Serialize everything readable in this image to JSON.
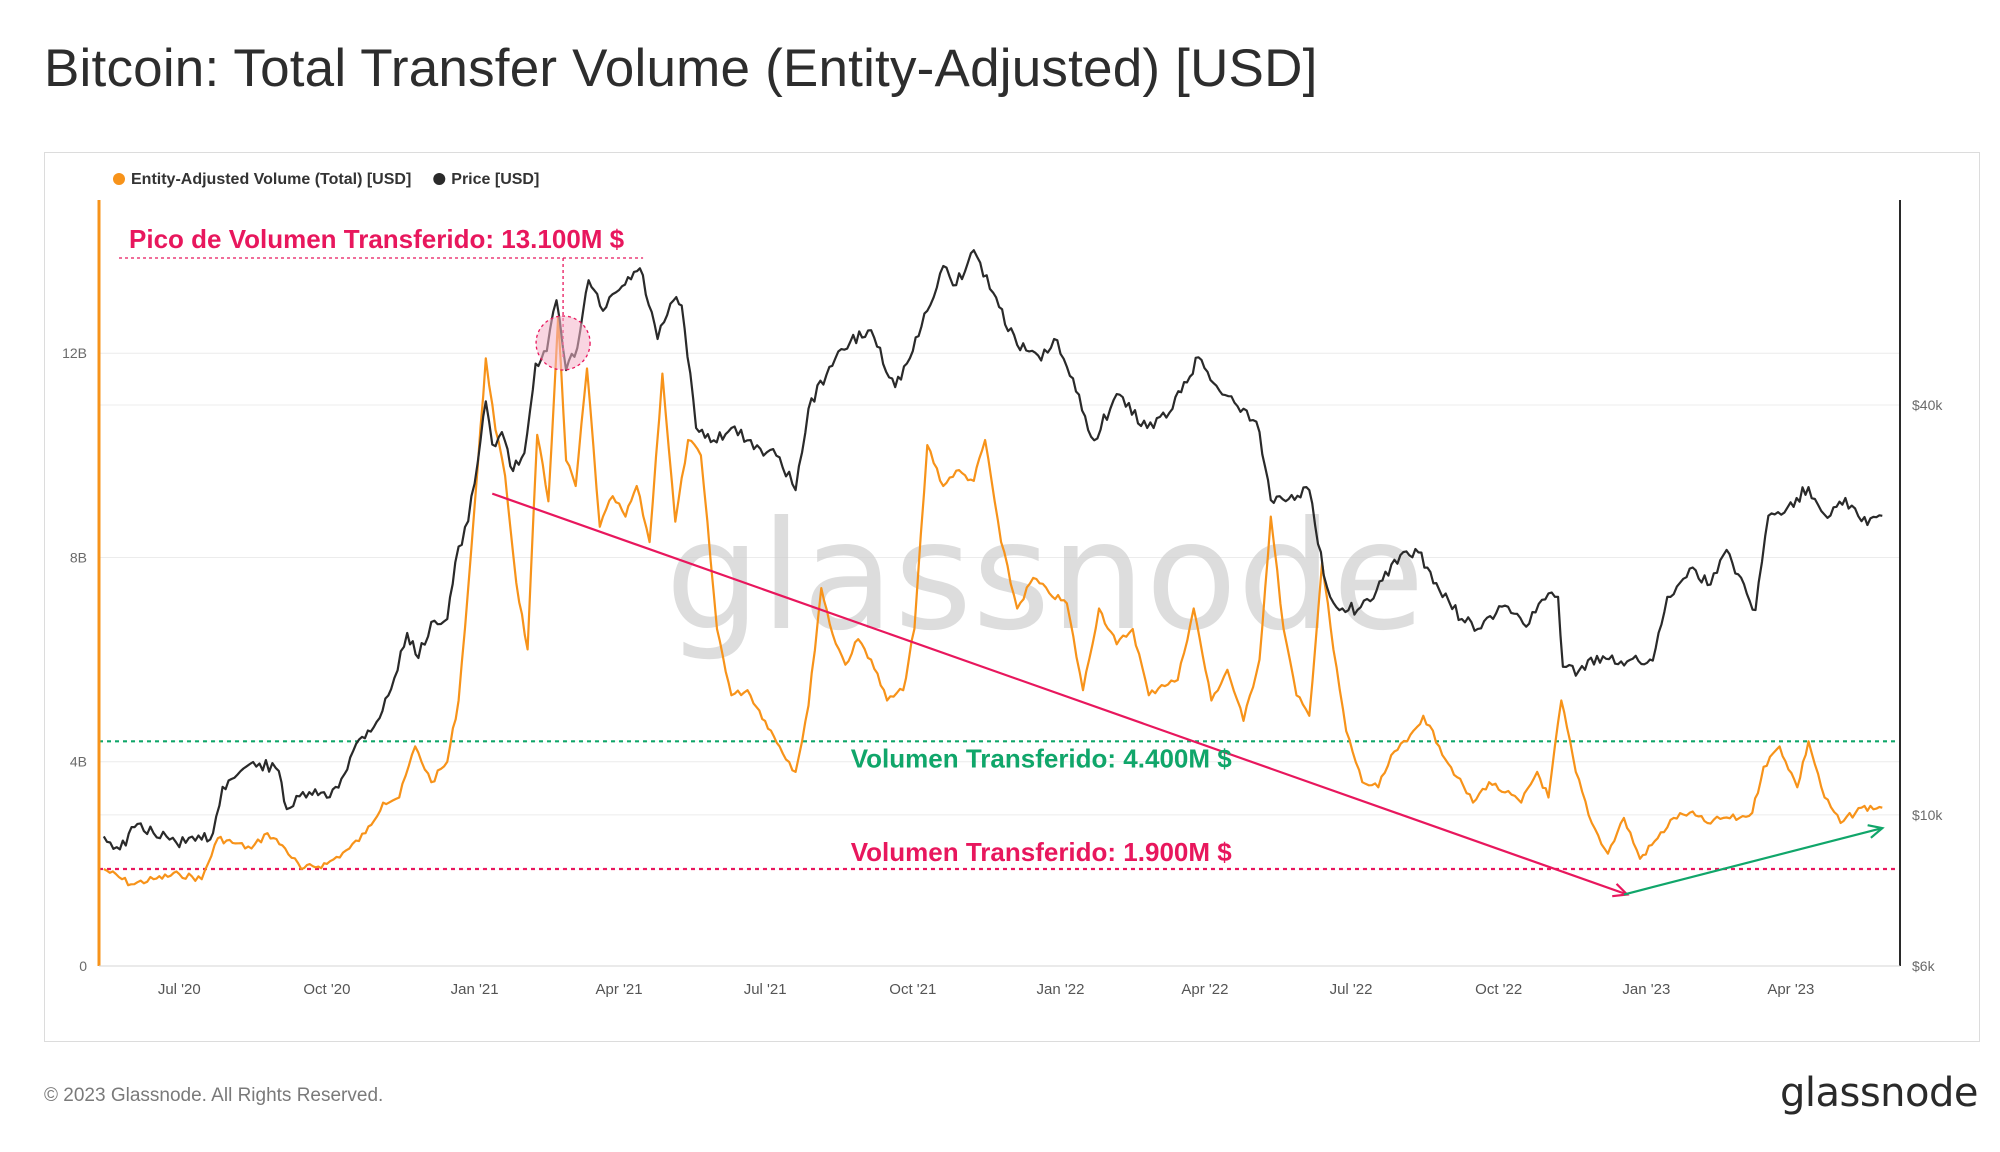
{
  "page": {
    "title": "Bitcoin: Total Transfer Volume (Entity-Adjusted) [USD]",
    "copyright": "© 2023 Glassnode. All Rights Reserved.",
    "logo": "glassnode",
    "watermark": "glassnode"
  },
  "colors": {
    "volume": "#f7931a",
    "price": "#2a2a2a",
    "peak_annotation": "#e8175d",
    "support_green": "#10a66a",
    "support_red": "#e8175d",
    "grid": "#ececec"
  },
  "chart_data": {
    "type": "line",
    "legend": [
      {
        "label": "Entity-Adjusted Volume (Total) [USD]",
        "color": "#f7931a"
      },
      {
        "label": "Price [USD]",
        "color": "#2a2a2a"
      }
    ],
    "legend_position": "top-left",
    "x_ticks": [
      "Jul '20",
      "Oct '20",
      "Jan '21",
      "Apr '21",
      "Jul '21",
      "Oct '21",
      "Jan '22",
      "Apr '22",
      "Jul '22",
      "Oct '22",
      "Jan '23",
      "Apr '23"
    ],
    "x_tick_dates": [
      "2020-07-01",
      "2020-10-01",
      "2021-01-01",
      "2021-04-01",
      "2021-07-01",
      "2021-10-01",
      "2022-01-01",
      "2022-04-01",
      "2022-07-01",
      "2022-10-01",
      "2023-01-01",
      "2023-04-01"
    ],
    "x_range": [
      "2020-05-12",
      "2023-06-08"
    ],
    "y_left": {
      "ticks": [
        "0",
        "4B",
        "8B",
        "12B"
      ],
      "tick_values": [
        0,
        4000000000,
        8000000000,
        12000000000
      ],
      "range": [
        0,
        15000000000
      ],
      "scale": "linear"
    },
    "y_right": {
      "ticks": [
        "$6k",
        "$10k",
        "$40k"
      ],
      "tick_values": [
        6000,
        10000,
        40000
      ],
      "range": [
        6000,
        80000
      ],
      "scale": "log"
    },
    "grid": true,
    "series": [
      {
        "name": "Entity-Adjusted Volume (Total) [USD]",
        "axis": "left",
        "points": [
          [
            "2020-05-15",
            1900000000.0
          ],
          [
            "2020-06-01",
            1600000000.0
          ],
          [
            "2020-06-15",
            1700000000.0
          ],
          [
            "2020-07-01",
            1800000000.0
          ],
          [
            "2020-07-15",
            1700000000.0
          ],
          [
            "2020-07-25",
            2500000000.0
          ],
          [
            "2020-08-05",
            2400000000.0
          ],
          [
            "2020-08-15",
            2300000000.0
          ],
          [
            "2020-08-25",
            2600000000.0
          ],
          [
            "2020-09-05",
            2300000000.0
          ],
          [
            "2020-09-15",
            1900000000.0
          ],
          [
            "2020-10-01",
            2000000000.0
          ],
          [
            "2020-10-15",
            2300000000.0
          ],
          [
            "2020-10-25",
            2600000000.0
          ],
          [
            "2020-11-05",
            3200000000.0
          ],
          [
            "2020-11-15",
            3300000000.0
          ],
          [
            "2020-11-25",
            4300000000.0
          ],
          [
            "2020-12-05",
            3600000000.0
          ],
          [
            "2020-12-15",
            4000000000.0
          ],
          [
            "2020-12-22",
            5200000000.0
          ],
          [
            "2020-12-28",
            7400000000.0
          ],
          [
            "2021-01-03",
            9800000000.0
          ],
          [
            "2021-01-08",
            11900000000.0
          ],
          [
            "2021-01-14",
            10500000000.0
          ],
          [
            "2021-01-20",
            9600000000.0
          ],
          [
            "2021-01-27",
            7500000000.0
          ],
          [
            "2021-02-03",
            6200000000.0
          ],
          [
            "2021-02-09",
            10400000000.0
          ],
          [
            "2021-02-16",
            9100000000.0
          ],
          [
            "2021-02-22",
            12700000000.0
          ],
          [
            "2021-02-27",
            9900000000.0
          ],
          [
            "2021-03-05",
            9400000000.0
          ],
          [
            "2021-03-12",
            11700000000.0
          ],
          [
            "2021-03-20",
            8600000000.0
          ],
          [
            "2021-03-28",
            9200000000.0
          ],
          [
            "2021-04-05",
            8800000000.0
          ],
          [
            "2021-04-12",
            9400000000.0
          ],
          [
            "2021-04-20",
            8300000000.0
          ],
          [
            "2021-04-28",
            11600000000.0
          ],
          [
            "2021-05-06",
            8700000000.0
          ],
          [
            "2021-05-14",
            10300000000.0
          ],
          [
            "2021-05-22",
            10000000000.0
          ],
          [
            "2021-06-01",
            6600000000.0
          ],
          [
            "2021-06-10",
            5300000000.0
          ],
          [
            "2021-06-20",
            5400000000.0
          ],
          [
            "2021-07-01",
            4800000000.0
          ],
          [
            "2021-07-10",
            4300000000.0
          ],
          [
            "2021-07-20",
            3800000000.0
          ],
          [
            "2021-07-28",
            5100000000.0
          ],
          [
            "2021-08-05",
            7400000000.0
          ],
          [
            "2021-08-12",
            6500000000.0
          ],
          [
            "2021-08-20",
            5900000000.0
          ],
          [
            "2021-08-28",
            6400000000.0
          ],
          [
            "2021-09-05",
            6000000000.0
          ],
          [
            "2021-09-15",
            5200000000.0
          ],
          [
            "2021-09-25",
            5400000000.0
          ],
          [
            "2021-10-02",
            6600000000.0
          ],
          [
            "2021-10-10",
            10200000000.0
          ],
          [
            "2021-10-20",
            9400000000.0
          ],
          [
            "2021-10-28",
            9700000000.0
          ],
          [
            "2021-11-08",
            9500000000.0
          ],
          [
            "2021-11-15",
            10300000000.0
          ],
          [
            "2021-11-25",
            8300000000.0
          ],
          [
            "2021-12-05",
            7000000000.0
          ],
          [
            "2021-12-15",
            7600000000.0
          ],
          [
            "2021-12-25",
            7300000000.0
          ],
          [
            "2022-01-05",
            7100000000.0
          ],
          [
            "2022-01-15",
            5400000000.0
          ],
          [
            "2022-01-25",
            7000000000.0
          ],
          [
            "2022-02-05",
            6300000000.0
          ],
          [
            "2022-02-15",
            6600000000.0
          ],
          [
            "2022-02-25",
            5300000000.0
          ],
          [
            "2022-03-05",
            5500000000.0
          ],
          [
            "2022-03-15",
            5600000000.0
          ],
          [
            "2022-03-25",
            7000000000.0
          ],
          [
            "2022-04-05",
            5200000000.0
          ],
          [
            "2022-04-15",
            5800000000.0
          ],
          [
            "2022-04-25",
            4800000000.0
          ],
          [
            "2022-05-05",
            6000000000.0
          ],
          [
            "2022-05-12",
            8800000000.0
          ],
          [
            "2022-05-20",
            6600000000.0
          ],
          [
            "2022-05-28",
            5300000000.0
          ],
          [
            "2022-06-05",
            4900000000.0
          ],
          [
            "2022-06-13",
            7900000000.0
          ],
          [
            "2022-06-20",
            6200000000.0
          ],
          [
            "2022-06-28",
            4600000000.0
          ],
          [
            "2022-07-08",
            3600000000.0
          ],
          [
            "2022-07-18",
            3500000000.0
          ],
          [
            "2022-07-28",
            4200000000.0
          ],
          [
            "2022-08-05",
            4400000000.0
          ],
          [
            "2022-08-15",
            4900000000.0
          ],
          [
            "2022-08-25",
            4300000000.0
          ],
          [
            "2022-09-05",
            3700000000.0
          ],
          [
            "2022-09-15",
            3200000000.0
          ],
          [
            "2022-09-25",
            3600000000.0
          ],
          [
            "2022-10-05",
            3400000000.0
          ],
          [
            "2022-10-15",
            3200000000.0
          ],
          [
            "2022-10-25",
            3800000000.0
          ],
          [
            "2022-11-01",
            3300000000.0
          ],
          [
            "2022-11-09",
            5200000000.0
          ],
          [
            "2022-11-18",
            3800000000.0
          ],
          [
            "2022-11-28",
            2800000000.0
          ],
          [
            "2022-12-08",
            2200000000.0
          ],
          [
            "2022-12-18",
            2900000000.0
          ],
          [
            "2022-12-28",
            2100000000.0
          ],
          [
            "2023-01-08",
            2500000000.0
          ],
          [
            "2023-01-18",
            2900000000.0
          ],
          [
            "2023-01-28",
            3000000000.0
          ],
          [
            "2023-02-08",
            2800000000.0
          ],
          [
            "2023-02-18",
            2900000000.0
          ],
          [
            "2023-02-28",
            2900000000.0
          ],
          [
            "2023-03-08",
            3000000000.0
          ],
          [
            "2023-03-15",
            3900000000.0
          ],
          [
            "2023-03-25",
            4300000000.0
          ],
          [
            "2023-04-05",
            3500000000.0
          ],
          [
            "2023-04-12",
            4400000000.0
          ],
          [
            "2023-04-22",
            3300000000.0
          ],
          [
            "2023-05-02",
            2800000000.0
          ],
          [
            "2023-05-15",
            3100000000.0
          ],
          [
            "2023-05-28",
            3100000000.0
          ]
        ]
      },
      {
        "name": "Price [USD]",
        "axis": "right",
        "points": [
          [
            "2020-05-15",
            9300
          ],
          [
            "2020-05-25",
            8900
          ],
          [
            "2020-06-05",
            9700
          ],
          [
            "2020-06-15",
            9400
          ],
          [
            "2020-06-25",
            9200
          ],
          [
            "2020-07-05",
            9100
          ],
          [
            "2020-07-15",
            9200
          ],
          [
            "2020-07-22",
            9400
          ],
          [
            "2020-07-28",
            11000
          ],
          [
            "2020-08-10",
            11700
          ],
          [
            "2020-08-20",
            11900
          ],
          [
            "2020-09-01",
            11600
          ],
          [
            "2020-09-06",
            10200
          ],
          [
            "2020-09-20",
            10800
          ],
          [
            "2020-10-01",
            10600
          ],
          [
            "2020-10-10",
            11300
          ],
          [
            "2020-10-21",
            12900
          ],
          [
            "2020-11-01",
            13700
          ],
          [
            "2020-11-10",
            15300
          ],
          [
            "2020-11-20",
            18500
          ],
          [
            "2020-11-27",
            17000
          ],
          [
            "2020-12-05",
            19200
          ],
          [
            "2020-12-15",
            19400
          ],
          [
            "2020-12-20",
            23500
          ],
          [
            "2020-12-28",
            27000
          ],
          [
            "2021-01-03",
            33000
          ],
          [
            "2021-01-08",
            40500
          ],
          [
            "2021-01-12",
            35000
          ],
          [
            "2021-01-18",
            36500
          ],
          [
            "2021-01-25",
            32000
          ],
          [
            "2021-02-01",
            34000
          ],
          [
            "2021-02-08",
            46000
          ],
          [
            "2021-02-15",
            48000
          ],
          [
            "2021-02-21",
            57000
          ],
          [
            "2021-02-27",
            45000
          ],
          [
            "2021-03-06",
            48500
          ],
          [
            "2021-03-13",
            61000
          ],
          [
            "2021-03-22",
            55000
          ],
          [
            "2021-04-01",
            59000
          ],
          [
            "2021-04-14",
            63500
          ],
          [
            "2021-04-25",
            50000
          ],
          [
            "2021-05-05",
            57000
          ],
          [
            "2021-05-10",
            56000
          ],
          [
            "2021-05-19",
            37000
          ],
          [
            "2021-05-30",
            35500
          ],
          [
            "2021-06-10",
            37000
          ],
          [
            "2021-06-20",
            35500
          ],
          [
            "2021-06-28",
            34500
          ],
          [
            "2021-07-10",
            33500
          ],
          [
            "2021-07-20",
            30000
          ],
          [
            "2021-07-28",
            39500
          ],
          [
            "2021-08-10",
            45500
          ],
          [
            "2021-08-23",
            49500
          ],
          [
            "2021-09-05",
            51500
          ],
          [
            "2021-09-20",
            42500
          ],
          [
            "2021-10-01",
            48000
          ],
          [
            "2021-10-10",
            55000
          ],
          [
            "2021-10-20",
            64000
          ],
          [
            "2021-10-28",
            60000
          ],
          [
            "2021-11-08",
            67500
          ],
          [
            "2021-11-20",
            58500
          ],
          [
            "2021-12-05",
            49000
          ],
          [
            "2021-12-20",
            46500
          ],
          [
            "2021-12-28",
            50000
          ],
          [
            "2022-01-05",
            45500
          ],
          [
            "2022-01-22",
            35500
          ],
          [
            "2022-02-05",
            41500
          ],
          [
            "2022-02-24",
            37000
          ],
          [
            "2022-03-10",
            39000
          ],
          [
            "2022-03-28",
            47000
          ],
          [
            "2022-04-10",
            42000
          ],
          [
            "2022-04-25",
            39500
          ],
          [
            "2022-05-05",
            36500
          ],
          [
            "2022-05-12",
            29000
          ],
          [
            "2022-05-25",
            29500
          ],
          [
            "2022-06-05",
            30000
          ],
          [
            "2022-06-14",
            22500
          ],
          [
            "2022-06-20",
            20500
          ],
          [
            "2022-07-05",
            20000
          ],
          [
            "2022-07-15",
            20800
          ],
          [
            "2022-07-28",
            23700
          ],
          [
            "2022-08-12",
            24300
          ],
          [
            "2022-08-25",
            21400
          ],
          [
            "2022-09-08",
            19400
          ],
          [
            "2022-09-20",
            18800
          ],
          [
            "2022-10-05",
            20300
          ],
          [
            "2022-10-20",
            19100
          ],
          [
            "2022-10-28",
            20700
          ],
          [
            "2022-11-07",
            20900
          ],
          [
            "2022-11-10",
            16500
          ],
          [
            "2022-11-20",
            16300
          ],
          [
            "2022-12-05",
            17100
          ],
          [
            "2022-12-20",
            16800
          ],
          [
            "2023-01-05",
            16850
          ],
          [
            "2023-01-14",
            20900
          ],
          [
            "2023-01-28",
            23000
          ],
          [
            "2023-02-10",
            21800
          ],
          [
            "2023-02-20",
            24500
          ],
          [
            "2023-03-10",
            20000
          ],
          [
            "2023-03-18",
            27500
          ],
          [
            "2023-03-30",
            28300
          ],
          [
            "2023-04-12",
            30300
          ],
          [
            "2023-04-22",
            27600
          ],
          [
            "2023-05-05",
            29200
          ],
          [
            "2023-05-15",
            27000
          ],
          [
            "2023-05-28",
            27500
          ]
        ]
      }
    ],
    "annotations": [
      {
        "text": "Pico de Volumen Transferido: 13.100M $",
        "color": "#e8175d",
        "date": "2021-02-22",
        "value": 13100000000
      },
      {
        "text": "Volumen Transferido: 4.400M $",
        "color": "#10a66a",
        "value": 4400000000
      },
      {
        "text": "Volumen Transferido: 1.900M $",
        "color": "#e8175d",
        "value": 1900000000
      }
    ],
    "trend_arrows": [
      {
        "color": "#e8175d",
        "from": [
          "2021-01-12",
          9250000000
        ],
        "to": [
          "2022-12-20",
          1400000000
        ]
      },
      {
        "color": "#10a66a",
        "from": [
          "2022-12-18",
          1400000000
        ],
        "to": [
          "2023-05-28",
          2700000000
        ]
      }
    ]
  }
}
